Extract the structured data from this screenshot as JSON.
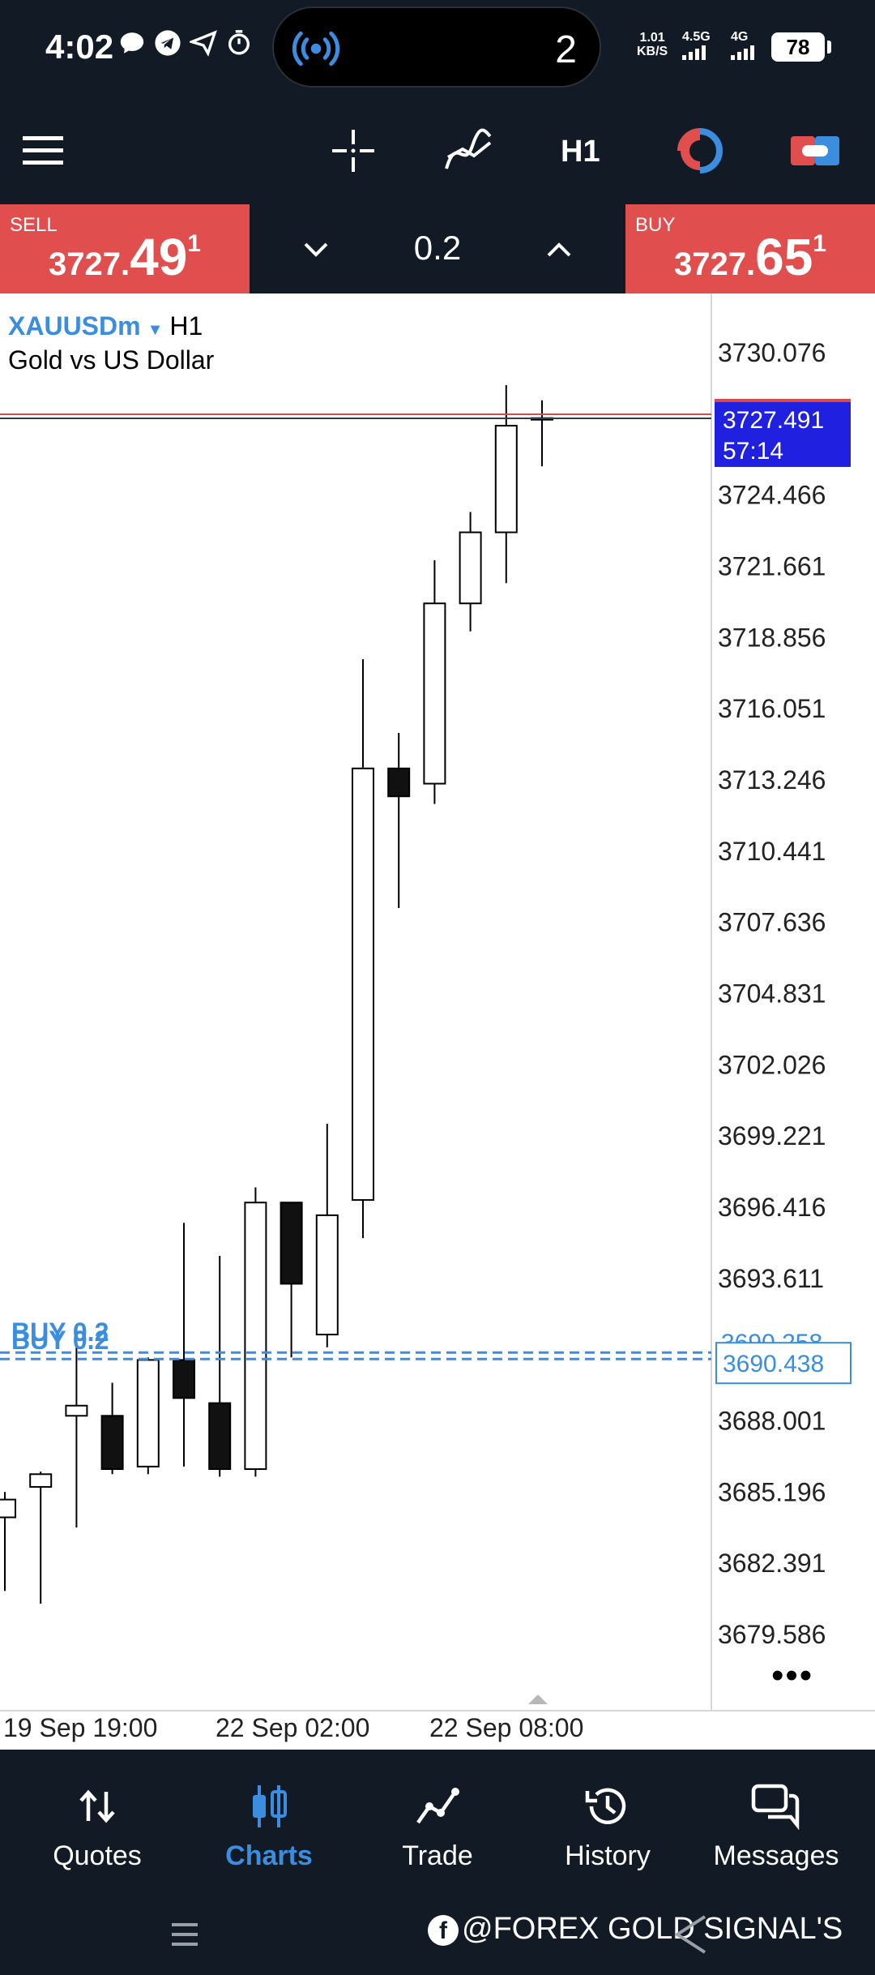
{
  "status_bar": {
    "time": "4:02",
    "island_count": "2",
    "net_speed_value": "1.01",
    "net_speed_unit": "KB/S",
    "network_1": "4.5G",
    "network_2": "4G",
    "battery": "78"
  },
  "toolbar": {
    "timeframe": "H1",
    "icons": [
      "menu-icon",
      "crosshair-icon",
      "indicators-icon",
      "timeframe-selector",
      "one-click-trading-icon",
      "trade-panel-toggle-icon"
    ]
  },
  "trade_bar": {
    "sell_label": "SELL",
    "sell_price_main": "3727.",
    "sell_price_big": "49",
    "sell_price_sup": "1",
    "buy_label": "BUY",
    "buy_price_main": "3727.",
    "buy_price_big": "65",
    "buy_price_sup": "1",
    "lot": "0.2",
    "sell_color": "#e04e4e",
    "buy_color": "#e04e4e"
  },
  "chart": {
    "symbol": "XAUUSDm",
    "timeframe": "H1",
    "description": "Gold vs US Dollar",
    "current_price": "3727.491",
    "countdown": "57:14",
    "position_label": "BUY 0.2",
    "position_label_2": "BUY 0.2",
    "position_price": "3690.438",
    "position_price_hidden": "3690.258",
    "price_axis": [
      "3730.076",
      "3724.466",
      "3721.661",
      "3718.856",
      "3716.051",
      "3713.246",
      "3710.441",
      "3707.636",
      "3704.831",
      "3702.026",
      "3699.221",
      "3696.416",
      "3693.611",
      "3688.001",
      "3685.196",
      "3682.391",
      "3679.586"
    ],
    "time_axis": [
      "19 Sep 19:00",
      "22 Sep 02:00",
      "22 Sep 08:00"
    ],
    "accent": "#3b8de0"
  },
  "chart_data": {
    "type": "candlestick",
    "title": "",
    "symbol": "XAUUSDm",
    "timeframe": "H1",
    "ylim": [
      3677.5,
      3731.5
    ],
    "x_ticks": [
      "19 Sep 19:00",
      "22 Sep 02:00",
      "22 Sep 08:00"
    ],
    "candles": [
      {
        "o": 3684.2,
        "h": 3685.2,
        "l": 3681.3,
        "c": 3684.9
      },
      {
        "o": 3685.4,
        "h": 3686.0,
        "l": 3680.8,
        "c": 3685.9
      },
      {
        "o": 3688.2,
        "h": 3691.7,
        "l": 3683.8,
        "c": 3688.6
      },
      {
        "o": 3688.2,
        "h": 3689.5,
        "l": 3685.9,
        "c": 3686.1
      },
      {
        "o": 3686.2,
        "h": 3690.5,
        "l": 3685.9,
        "c": 3690.4
      },
      {
        "o": 3690.4,
        "h": 3695.8,
        "l": 3686.2,
        "c": 3688.9
      },
      {
        "o": 3688.7,
        "h": 3694.5,
        "l": 3685.8,
        "c": 3686.1
      },
      {
        "o": 3686.1,
        "h": 3697.2,
        "l": 3685.8,
        "c": 3696.6
      },
      {
        "o": 3696.6,
        "h": 3696.1,
        "l": 3690.5,
        "c": 3693.4
      },
      {
        "o": 3691.4,
        "h": 3699.7,
        "l": 3690.9,
        "c": 3696.1
      },
      {
        "o": 3696.7,
        "h": 3718.0,
        "l": 3695.2,
        "c": 3713.7
      },
      {
        "o": 3713.7,
        "h": 3715.1,
        "l": 3708.2,
        "c": 3712.6
      },
      {
        "o": 3713.1,
        "h": 3721.9,
        "l": 3712.3,
        "c": 3720.2
      },
      {
        "o": 3720.2,
        "h": 3723.8,
        "l": 3719.1,
        "c": 3723.0
      },
      {
        "o": 3723.0,
        "h": 3728.8,
        "l": 3721.0,
        "c": 3727.2
      },
      {
        "o": 3727.5,
        "h": 3728.2,
        "l": 3725.6,
        "c": 3727.5
      }
    ]
  },
  "bottom_nav": {
    "items": [
      {
        "label": "Quotes",
        "icon": "quotes-icon"
      },
      {
        "label": "Charts",
        "icon": "charts-icon"
      },
      {
        "label": "Trade",
        "icon": "trade-icon"
      },
      {
        "label": "History",
        "icon": "history-icon"
      },
      {
        "label": "Messages",
        "icon": "messages-icon"
      }
    ],
    "active": "Charts"
  },
  "watermark": "@FOREX GOLD SIGNAL'S"
}
